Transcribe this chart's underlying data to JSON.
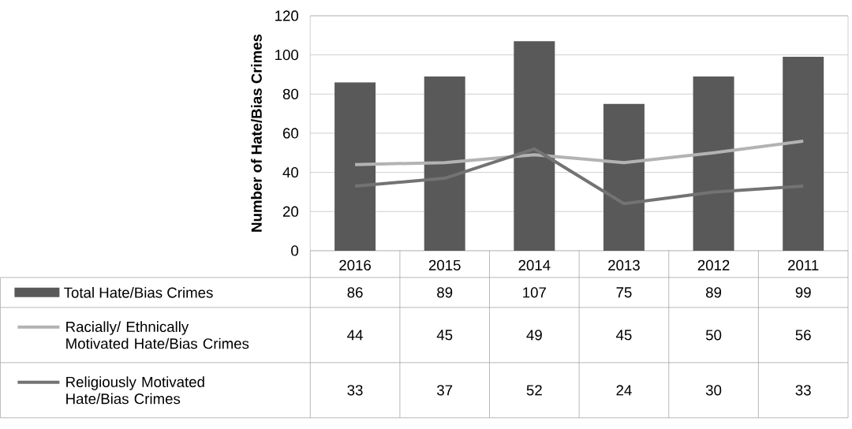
{
  "chart_data": {
    "type": "bar",
    "ylabel": "Number of Hate/Bias Crimes",
    "categories": [
      "2016",
      "2015",
      "2014",
      "2013",
      "2012",
      "2011"
    ],
    "series": [
      {
        "name": "Total Hate/Bias Crimes",
        "color": "#595959",
        "values": [
          86,
          89,
          107,
          75,
          89,
          99
        ]
      },
      {
        "name": "Racially/ Ethnically Motivated Hate/Bias Crimes",
        "type": "line",
        "color": "#b3b3b3",
        "values": [
          44,
          45,
          49,
          45,
          50,
          56
        ]
      },
      {
        "name": "Religiously Motivated Hate/Bias Crimes",
        "type": "line",
        "color": "#737373",
        "values": [
          33,
          37,
          52,
          24,
          30,
          33
        ]
      }
    ],
    "ylim": [
      0,
      120
    ],
    "yticks": [
      0,
      20,
      40,
      60,
      80,
      100,
      120
    ],
    "grid": "y",
    "legend": "bottom",
    "data_labels": true
  }
}
